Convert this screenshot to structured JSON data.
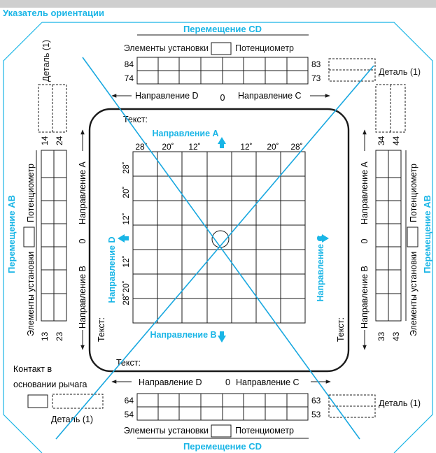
{
  "header": {
    "title": "Указатель ориентации"
  },
  "colors": {
    "accent": "#19b5e6",
    "line": "#1a1a1a",
    "cross": "#19a8e0",
    "bar": "#cfcfcf"
  },
  "top": {
    "heading": "Перемещение CD",
    "install": "Элементы установки",
    "pot": "Потенциометр",
    "left_nums": [
      "84",
      "74"
    ],
    "right_nums": [
      "83",
      "73"
    ],
    "detail": "Деталь (1)",
    "dir_d": "Направление D",
    "zero": "0",
    "dir_c": "Направление C"
  },
  "bottom": {
    "heading": "Перемещение CD",
    "install": "Элементы установки",
    "pot": "Потенциометр",
    "left_nums": [
      "64",
      "54"
    ],
    "right_nums": [
      "63",
      "53"
    ],
    "detail_left": "Деталь (1)",
    "detail_right": "Деталь (1)",
    "dir_d": "Направление D",
    "zero": "0",
    "dir_c": "Направление C",
    "contact_line1": "Контакт в",
    "contact_line2": "основании рычага"
  },
  "left": {
    "heading": "Перемещение AB",
    "install": "Элементы установки",
    "pot": "Потенциометр",
    "top_nums": [
      "14",
      "24"
    ],
    "bottom_nums": [
      "13",
      "23"
    ],
    "detail": "Деталь (1)",
    "dir_a": "Направление A",
    "zero": "0",
    "dir_b": "Направление B"
  },
  "right": {
    "heading": "Перемещение AB",
    "install": "Элементы установки",
    "pot": "Потенциометр",
    "top_nums": [
      "34",
      "44"
    ],
    "bottom_nums": [
      "33",
      "43"
    ],
    "dir_a": "Направление A",
    "zero": "0",
    "dir_b": "Направление B"
  },
  "center": {
    "text_top": "Текст:",
    "text_bottom": "Текст:",
    "text_left": "Текст:",
    "text_right": "Текст:",
    "dir_a": "Направление A",
    "dir_b": "Направление B",
    "dir_c": "Направление C",
    "dir_d": "Направление D",
    "degree_ticks": [
      "28˚",
      "20˚",
      "12˚",
      "12˚",
      "20˚",
      "28˚"
    ],
    "left_ticks": [
      "28˚",
      "20˚",
      "12˚",
      "12˚",
      "20˚",
      "28˚"
    ]
  }
}
